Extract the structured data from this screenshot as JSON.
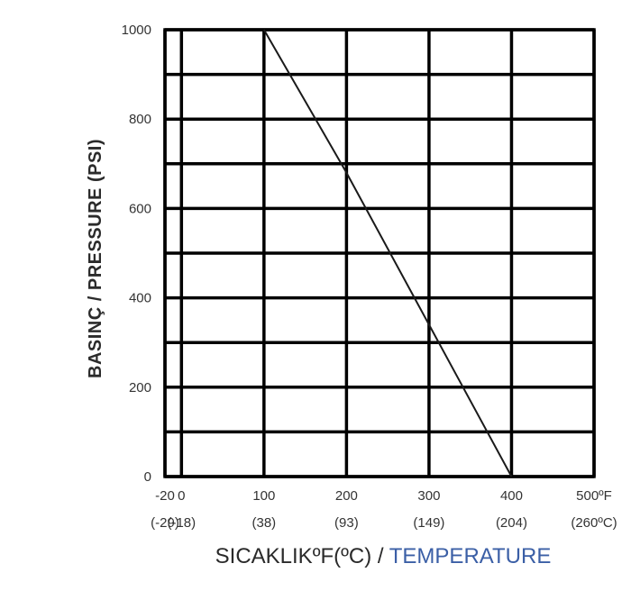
{
  "chart_data": {
    "type": "line",
    "y_label": "BASINÇ  / PRESSURE (PSI)",
    "x_label_part1": "SICAKLIKºF(ºC) / ",
    "x_label_part2": "TEMPERATURE",
    "x_label_color1": "#2a2a2a",
    "x_label_color2": "#3b5fa6",
    "x_range": [
      -20,
      500
    ],
    "y_range": [
      0,
      1000
    ],
    "x_ticks": [
      {
        "value": -20,
        "f": "-20",
        "c": "(-29)"
      },
      {
        "value": 0,
        "f": "0",
        "c": "(-18)"
      },
      {
        "value": 100,
        "f": "100",
        "c": "(38)"
      },
      {
        "value": 200,
        "f": "200",
        "c": "(93)"
      },
      {
        "value": 300,
        "f": "300",
        "c": "(149)"
      },
      {
        "value": 400,
        "f": "400",
        "c": "(204)"
      },
      {
        "value": 500,
        "f": "500ºF",
        "c": "(260ºC)"
      }
    ],
    "y_ticks": [
      {
        "value": 0,
        "label": "0"
      },
      {
        "value": 200,
        "label": "200"
      },
      {
        "value": 400,
        "label": "400"
      },
      {
        "value": 600,
        "label": "600"
      },
      {
        "value": 800,
        "label": "800"
      },
      {
        "value": 1000,
        "label": "1000"
      }
    ],
    "minor_y_gridlines": [
      100,
      300,
      500,
      700,
      900
    ],
    "grid": true,
    "series": [
      {
        "x": [
          100,
          200,
          300,
          400
        ],
        "y": [
          1000,
          680,
          340,
          0
        ]
      }
    ]
  }
}
